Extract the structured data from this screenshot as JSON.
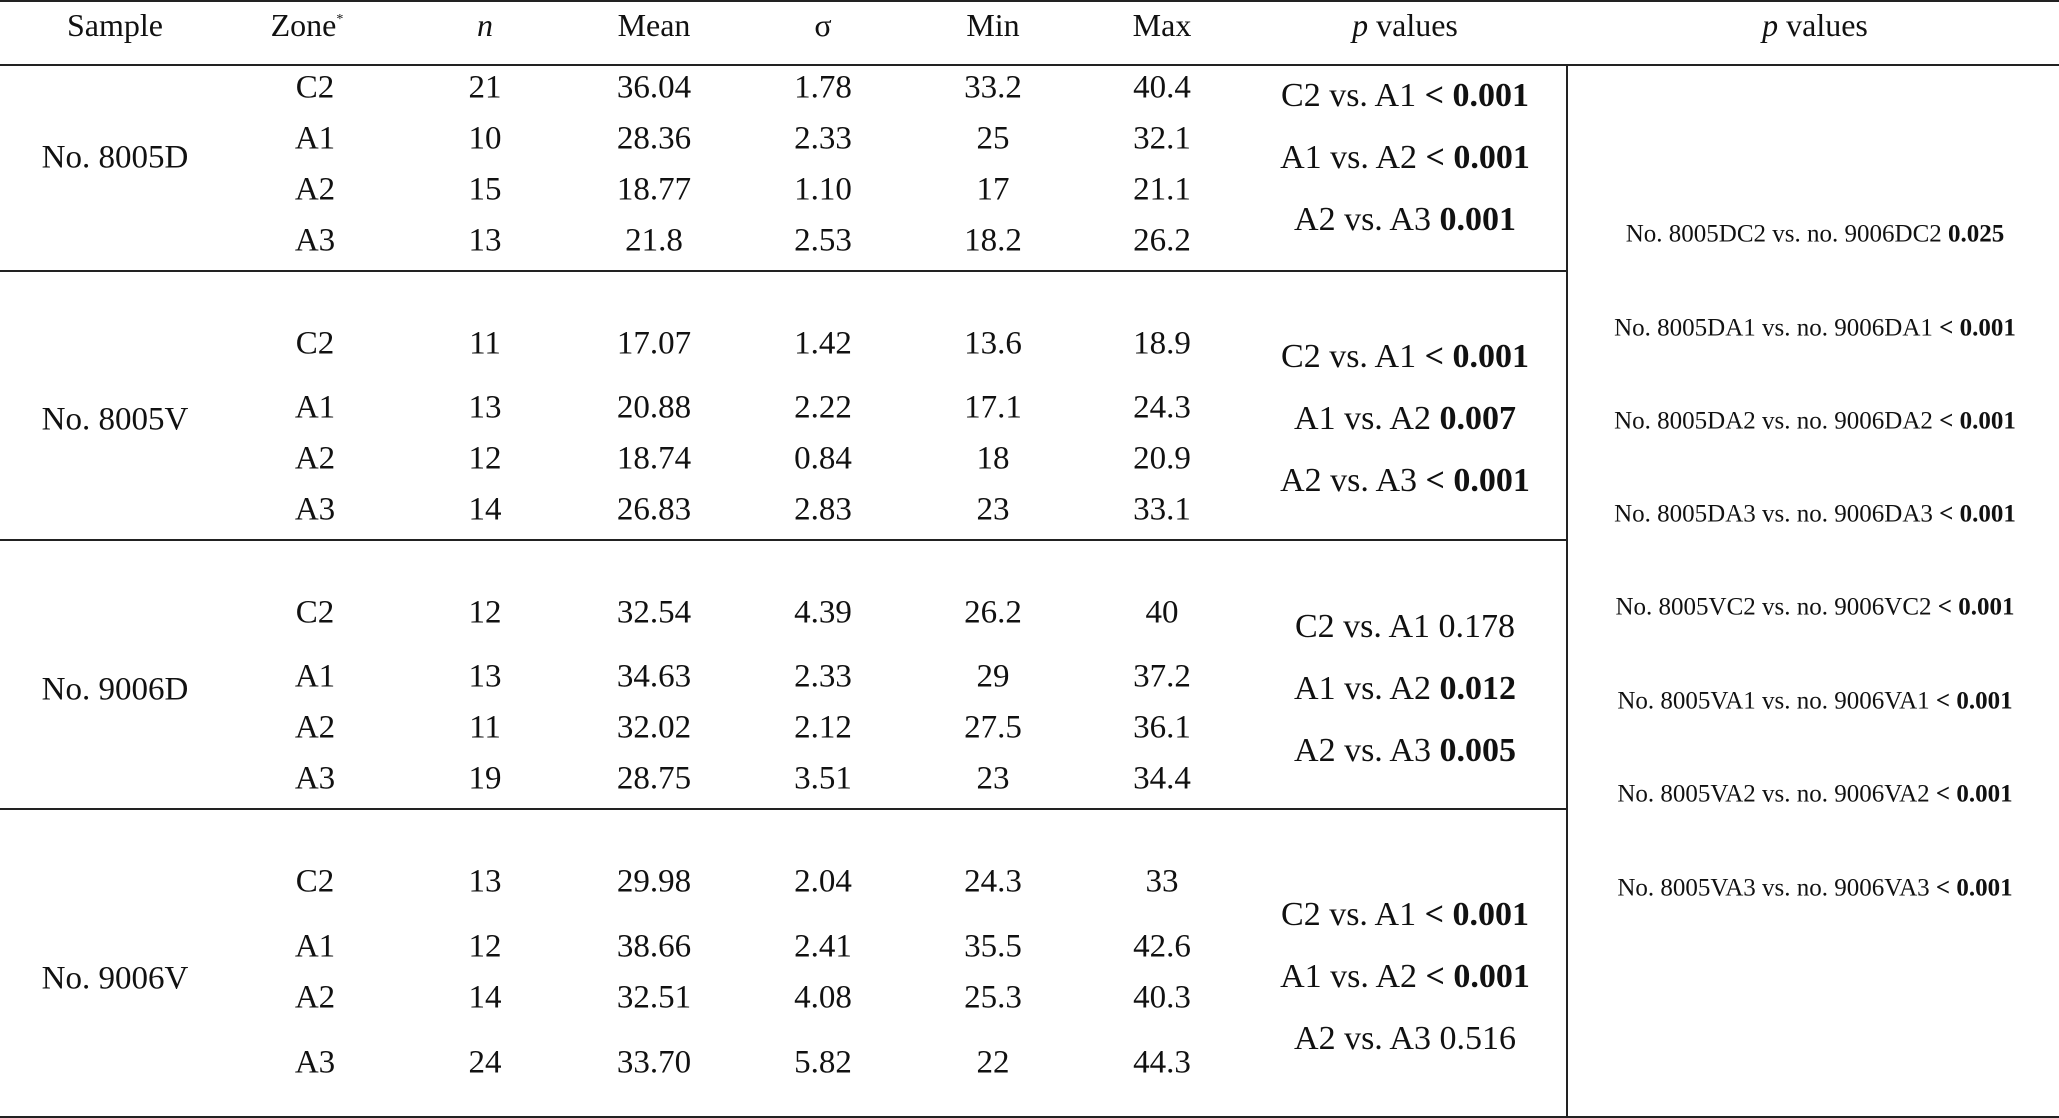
{
  "headers": {
    "sample": "Sample",
    "zone": "Zone",
    "zone_marker": "*",
    "n": "n",
    "mean": "Mean",
    "sigma": "σ",
    "min": "Min",
    "max": "Max",
    "p_values_italic": "p",
    "p_values_rest": " values",
    "p_values2_italic": "p",
    "p_values2_rest": " values"
  },
  "groups": [
    {
      "sample": "No. 8005D",
      "rows": [
        {
          "zone": "C2",
          "n": "21",
          "mean": "36.04",
          "sigma": "1.78",
          "min": "33.2",
          "max": "40.4"
        },
        {
          "zone": "A1",
          "n": "10",
          "mean": "28.36",
          "sigma": "2.33",
          "min": "25",
          "max": "32.1"
        },
        {
          "zone": "A2",
          "n": "15",
          "mean": "18.77",
          "sigma": "1.10",
          "min": "17",
          "max": "21.1"
        },
        {
          "zone": "A3",
          "n": "13",
          "mean": "21.8",
          "sigma": "2.53",
          "min": "18.2",
          "max": "26.2"
        }
      ],
      "pvalues": [
        {
          "label": "C2 vs. A1 ",
          "value": "< 0.001"
        },
        {
          "label": "A1 vs. A2 ",
          "value": "< 0.001"
        },
        {
          "label": "A2 vs. A3 ",
          "value": "0.001"
        }
      ]
    },
    {
      "sample": "No. 8005V",
      "rows": [
        {
          "zone": "C2",
          "n": "11",
          "mean": "17.07",
          "sigma": "1.42",
          "min": "13.6",
          "max": "18.9"
        },
        {
          "zone": "A1",
          "n": "13",
          "mean": "20.88",
          "sigma": "2.22",
          "min": "17.1",
          "max": "24.3"
        },
        {
          "zone": "A2",
          "n": "12",
          "mean": "18.74",
          "sigma": "0.84",
          "min": "18",
          "max": "20.9"
        },
        {
          "zone": "A3",
          "n": "14",
          "mean": "26.83",
          "sigma": "2.83",
          "min": "23",
          "max": "33.1"
        }
      ],
      "pvalues": [
        {
          "label": "C2 vs. A1 ",
          "value": "< 0.001"
        },
        {
          "label": "A1 vs. A2 ",
          "value": "0.007"
        },
        {
          "label": "A2 vs. A3 ",
          "value": "< 0.001"
        }
      ]
    },
    {
      "sample": "No. 9006D",
      "rows": [
        {
          "zone": "C2",
          "n": "12",
          "mean": "32.54",
          "sigma": "4.39",
          "min": "26.2",
          "max": "40"
        },
        {
          "zone": "A1",
          "n": "13",
          "mean": "34.63",
          "sigma": "2.33",
          "min": "29",
          "max": "37.2"
        },
        {
          "zone": "A2",
          "n": "11",
          "mean": "32.02",
          "sigma": "2.12",
          "min": "27.5",
          "max": "36.1"
        },
        {
          "zone": "A3",
          "n": "19",
          "mean": "28.75",
          "sigma": "3.51",
          "min": "23",
          "max": "34.4"
        }
      ],
      "pvalues": [
        {
          "label": "C2 vs. A1 0.178",
          "value": ""
        },
        {
          "label": "A1 vs. A2 ",
          "value": "0.012"
        },
        {
          "label": "A2 vs. A3 ",
          "value": "0.005"
        }
      ]
    },
    {
      "sample": "No. 9006V",
      "rows": [
        {
          "zone": "C2",
          "n": "13",
          "mean": "29.98",
          "sigma": "2.04",
          "min": "24.3",
          "max": "33"
        },
        {
          "zone": "A1",
          "n": "12",
          "mean": "38.66",
          "sigma": "2.41",
          "min": "35.5",
          "max": "42.6"
        },
        {
          "zone": "A2",
          "n": "14",
          "mean": "32.51",
          "sigma": "4.08",
          "min": "25.3",
          "max": "40.3"
        },
        {
          "zone": "A3",
          "n": "24",
          "mean": "33.70",
          "sigma": "5.82",
          "min": "22",
          "max": "44.3"
        }
      ],
      "pvalues": [
        {
          "label": "C2 vs. A1 ",
          "value": "< 0.001"
        },
        {
          "label": "A1 vs. A2 ",
          "value": "< 0.001"
        },
        {
          "label": "A2 vs. A3 0.516",
          "value": ""
        }
      ]
    }
  ],
  "comparisons": [
    {
      "label": "No. 8005DC2 vs. no. 9006DC2 ",
      "value": "0.025"
    },
    {
      "label": "No. 8005DA1 vs. no. 9006DA1 ",
      "value": "< 0.001"
    },
    {
      "label": "No. 8005DA2 vs. no. 9006DA2 ",
      "value": "< 0.001"
    },
    {
      "label": "No. 8005DA3 vs. no. 9006DA3 ",
      "value": "< 0.001"
    },
    {
      "label": "No. 8005VC2 vs. no. 9006VC2 ",
      "value": "< 0.001"
    },
    {
      "label": "No. 8005VA1 vs. no. 9006VA1 ",
      "value": "< 0.001"
    },
    {
      "label": "No. 8005VA2 vs. no. 9006VA2 ",
      "value": "< 0.001"
    },
    {
      "label": "No. 8005VA3 vs. no. 9006VA3 ",
      "value": "< 0.001"
    }
  ]
}
